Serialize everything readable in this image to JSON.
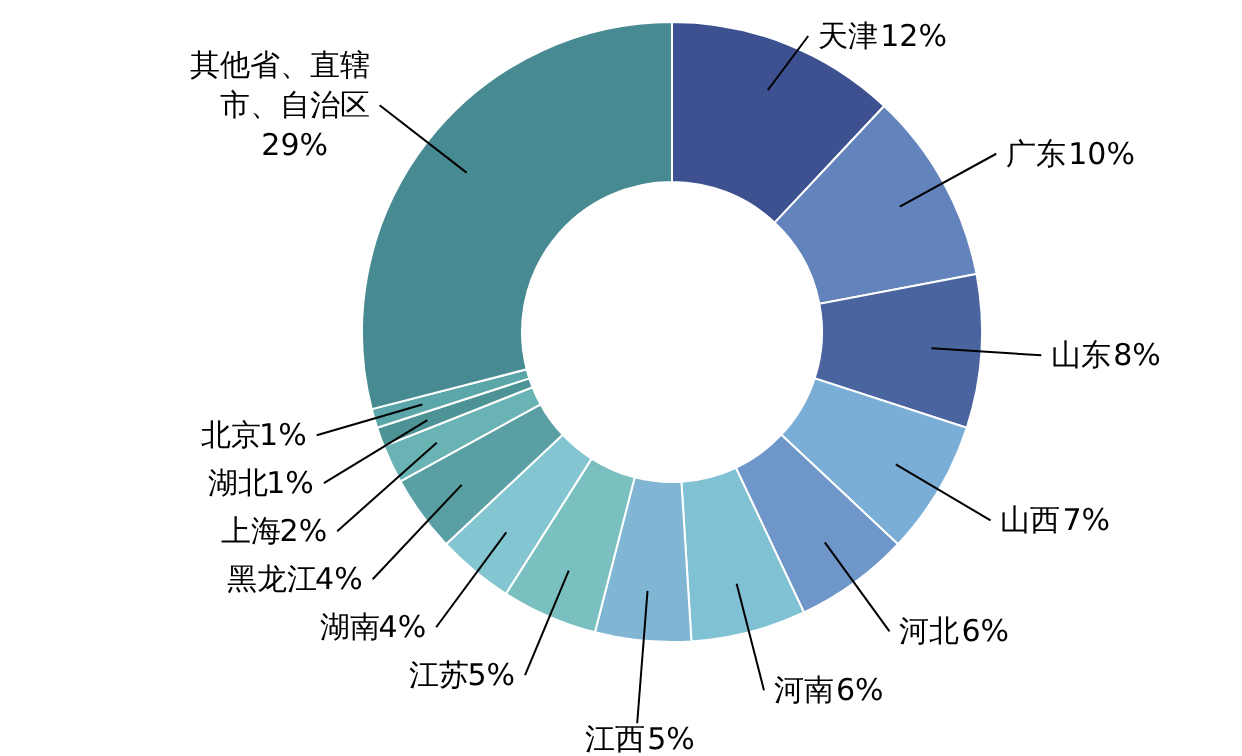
{
  "chart_data": {
    "type": "donut",
    "categories": [
      "天津",
      "广东",
      "山东",
      "山西",
      "河北",
      "河南",
      "江西",
      "江苏",
      "湖南",
      "黑龙江",
      "上海",
      "湖北",
      "北京",
      "其他省、直辖市、自治区"
    ],
    "values": [
      12,
      10,
      8,
      7,
      6,
      6,
      5,
      5,
      4,
      4,
      2,
      1,
      1,
      29
    ],
    "value_labels": [
      "12%",
      "10%",
      "8%",
      "7%",
      "6%",
      "6%",
      "5%",
      "5%",
      "4%",
      "4%",
      "2%",
      "1%",
      "1%",
      "29%"
    ],
    "colors": [
      "#3d5190",
      "#6283bb",
      "#4a64a0",
      "#7aaed6",
      "#6e96c9",
      "#80c1d4",
      "#80b6d4",
      "#7bc0c0",
      "#83c5d0",
      "#5a9fa3",
      "#6ab3b4",
      "#4d9396",
      "#5aa6a8",
      "#478a91"
    ]
  }
}
